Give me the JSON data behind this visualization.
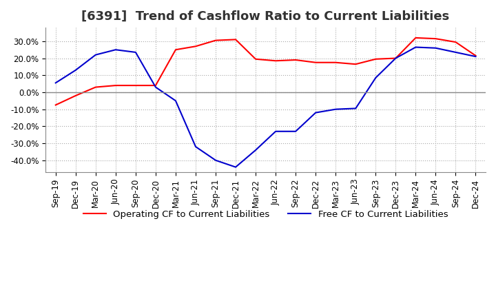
{
  "title": "[6391]  Trend of Cashflow Ratio to Current Liabilities",
  "ylim": [
    -0.47,
    0.38
  ],
  "yticks": [
    -0.4,
    -0.3,
    -0.2,
    -0.1,
    0.0,
    0.1,
    0.2,
    0.3
  ],
  "x_labels": [
    "Sep-19",
    "Dec-19",
    "Mar-20",
    "Jun-20",
    "Sep-20",
    "Dec-20",
    "Mar-21",
    "Jun-21",
    "Sep-21",
    "Dec-21",
    "Mar-22",
    "Jun-22",
    "Sep-22",
    "Dec-22",
    "Mar-23",
    "Jun-23",
    "Sep-23",
    "Dec-23",
    "Mar-24",
    "Jun-24",
    "Sep-24",
    "Dec-24"
  ],
  "operating_cf": [
    -0.075,
    -0.02,
    0.03,
    0.04,
    0.04,
    0.04,
    0.25,
    0.27,
    0.305,
    0.31,
    0.195,
    0.185,
    0.19,
    0.175,
    0.175,
    0.165,
    0.195,
    0.2,
    0.32,
    0.315,
    0.295,
    0.215
  ],
  "free_cf": [
    0.055,
    0.13,
    0.22,
    0.25,
    0.235,
    0.03,
    -0.05,
    -0.32,
    -0.4,
    -0.44,
    -0.34,
    -0.23,
    -0.23,
    -0.12,
    -0.1,
    -0.095,
    0.085,
    0.2,
    0.265,
    0.26,
    0.235,
    0.21
  ],
  "operating_color": "#ff0000",
  "free_color": "#0000cd",
  "grid_color": "#aaaaaa",
  "background_color": "#ffffff",
  "title_fontsize": 13,
  "tick_fontsize": 8.5,
  "legend_fontsize": 9.5
}
